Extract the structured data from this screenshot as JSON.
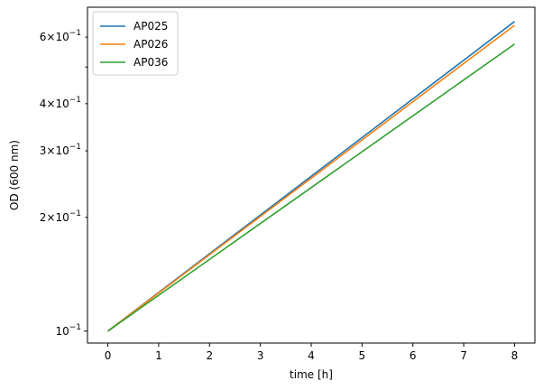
{
  "chart_data": {
    "type": "line",
    "title": "",
    "xlabel": "time [h]",
    "ylabel": "OD (600 nm)",
    "yscale": "log",
    "xlim": [
      -0.4,
      8.4
    ],
    "ylim": [
      0.093,
      0.72
    ],
    "xticks": [
      {
        "value": 0,
        "label": "0"
      },
      {
        "value": 1,
        "label": "1"
      },
      {
        "value": 2,
        "label": "2"
      },
      {
        "value": 3,
        "label": "3"
      },
      {
        "value": 4,
        "label": "4"
      },
      {
        "value": 5,
        "label": "5"
      },
      {
        "value": 6,
        "label": "6"
      },
      {
        "value": 7,
        "label": "7"
      },
      {
        "value": 8,
        "label": "8"
      }
    ],
    "yticks_major": [
      {
        "value": 0.1,
        "mantissa": "",
        "exponent": "−1"
      }
    ],
    "yticks_minor": [
      {
        "value": 0.2,
        "mantissa": "2",
        "exponent": "−1"
      },
      {
        "value": 0.3,
        "mantissa": "3",
        "exponent": "−1"
      },
      {
        "value": 0.4,
        "mantissa": "4",
        "exponent": "−1"
      },
      {
        "value": 0.5,
        "mantissa": "",
        "exponent": ""
      },
      {
        "value": 0.6,
        "mantissa": "6",
        "exponent": "−1"
      }
    ],
    "grid": false,
    "legend_position": "top-left",
    "x": [
      0,
      8
    ],
    "series": [
      {
        "name": "AP025",
        "color": "#1f77b4",
        "values": [
          0.1,
          0.66
        ]
      },
      {
        "name": "AP026",
        "color": "#ff7f0e",
        "values": [
          0.1,
          0.645
        ]
      },
      {
        "name": "AP036",
        "color": "#2ca02c",
        "values": [
          0.1,
          0.575
        ]
      }
    ]
  }
}
